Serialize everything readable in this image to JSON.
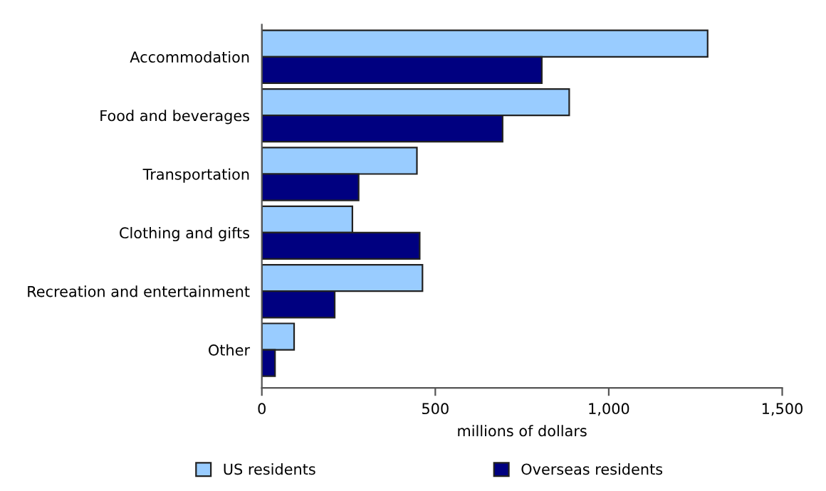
{
  "chart_data": {
    "type": "bar",
    "orientation": "horizontal",
    "xlabel": "millions of dollars",
    "categories": [
      "Accommodation",
      "Food and beverages",
      "Transportation",
      "Clothing and gifts",
      "Recreation and entertainment",
      "Other"
    ],
    "series": [
      {
        "name": "US residents",
        "color": "#99ccff",
        "values": [
          1285,
          886,
          447,
          261,
          463,
          93
        ]
      },
      {
        "name": "Overseas residents",
        "color": "#000080",
        "values": [
          807,
          694,
          279,
          455,
          210,
          38
        ]
      }
    ],
    "xlim": [
      0,
      1500
    ],
    "xticks": [
      0,
      500,
      {
        "value": 1000,
        "label": "1,000"
      },
      {
        "value": 1500,
        "label": "1,500"
      }
    ],
    "grid": false,
    "legend": "bottom"
  }
}
